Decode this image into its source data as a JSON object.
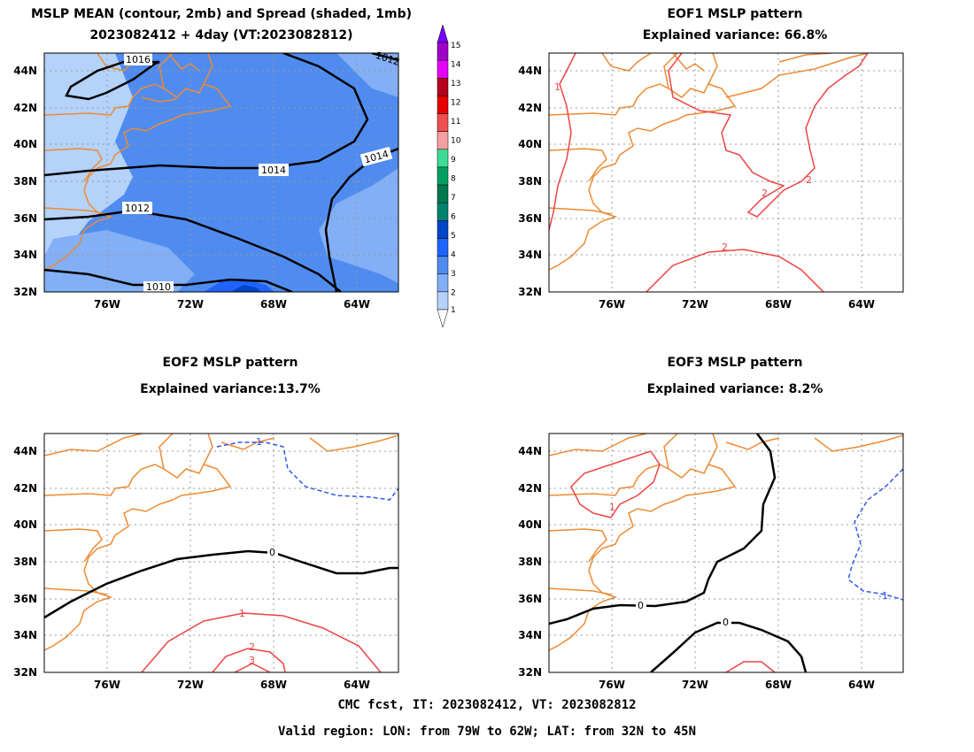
{
  "panels": {
    "mean": {
      "title_line1": "MSLP MEAN (contour, 2mb) and Spread (shaded, 1mb)",
      "title_line2": "2023082412 + 4day (VT:2023082812)",
      "contour_labels": [
        "1016",
        "1012",
        "1014",
        "1014",
        "1012",
        "1010"
      ]
    },
    "eof1": {
      "title_line1": "EOF1  MSLP pattern",
      "title_line2": "Explained variance: 66.8%",
      "contour_labels": [
        "1",
        "2",
        "2",
        "2"
      ]
    },
    "eof2": {
      "title_line1": "EOF2  MSLP pattern",
      "title_line2": "Explained variance:13.7%",
      "contour_labels": [
        "-1",
        "0",
        "1",
        "2",
        "3"
      ]
    },
    "eof3": {
      "title_line1": "EOF3  MSLP pattern",
      "title_line2": "Explained variance: 8.2%",
      "contour_labels": [
        "1",
        "0",
        "0",
        "-1"
      ]
    }
  },
  "axes": {
    "lat_labels": [
      "44N",
      "42N",
      "40N",
      "38N",
      "36N",
      "34N",
      "32N"
    ],
    "lon_labels": [
      "76W",
      "72W",
      "68W",
      "64W"
    ]
  },
  "colorbar": {
    "labels": [
      "15",
      "14",
      "13",
      "12",
      "11",
      "10",
      "9",
      "8",
      "7",
      "6",
      "5",
      "4",
      "3",
      "2",
      "1"
    ],
    "colors": [
      "#a000c8",
      "#e600ff",
      "#b4001e",
      "#e60000",
      "#f05050",
      "#f5a0a0",
      "#3cdc96",
      "#00a064",
      "#007850",
      "#00826e",
      "#0046c8",
      "#1e64ff",
      "#508cf0",
      "#82aff5",
      "#b4d2fa"
    ],
    "top_color": "#7800ff"
  },
  "footer": {
    "line1": "CMC fcst, IT: 2023082412, VT: 2023082812",
    "line2": "Valid region: LON: from 79W to 62W; LAT: from 32N to 45N"
  },
  "colors": {
    "coast": "#ee8a33",
    "positive": "#ee4444",
    "negative": "#3355ee",
    "zero": "#000000"
  }
}
